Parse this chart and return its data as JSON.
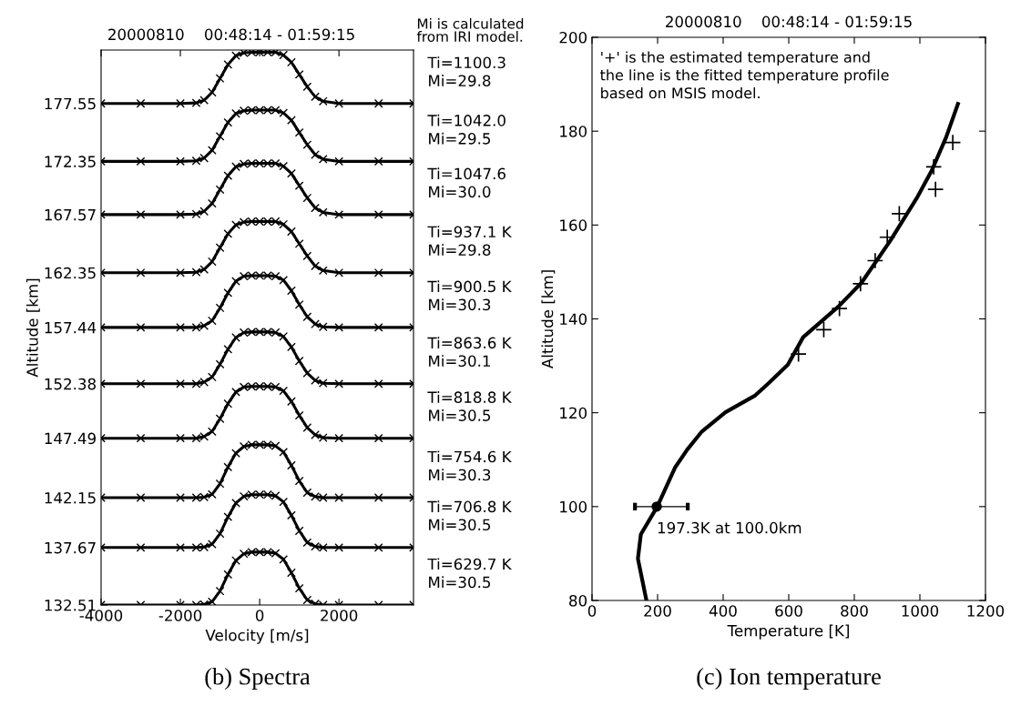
{
  "chart_data": [
    {
      "type": "line",
      "title": "20000810    00:48:14 - 01:59:15",
      "xlabel": "Velocity [m/s]",
      "ylabel": "Altitude [km]",
      "x": [
        -4000,
        -3000,
        -2000,
        -1600,
        -1400,
        -1200,
        -1000,
        -800,
        -600,
        -400,
        -200,
        0,
        200,
        400,
        600,
        800,
        1000,
        1200,
        1400,
        1600,
        2000,
        3000,
        3880
      ],
      "xlim": [
        -4000,
        3880
      ],
      "xticks": [
        -4000,
        -2000,
        0,
        2000
      ],
      "ylim": [
        132.51,
        182.35
      ],
      "yticks": [
        132.51,
        137.67,
        142.15,
        147.49,
        152.38,
        157.44,
        162.35,
        167.57,
        172.35,
        177.55
      ],
      "marker": "cross",
      "line_style": "solid",
      "grid": false,
      "legend": false,
      "series": [
        {
          "color": "#000000",
          "values": [
            132.51,
            132.51,
            132.51,
            132.51,
            132.56,
            132.81,
            133.76,
            135.26,
            136.51,
            137.11,
            137.26,
            137.26,
            137.26,
            137.16,
            136.61,
            135.41,
            134.01,
            132.96,
            132.61,
            132.51,
            132.51,
            132.51,
            132.51
          ]
        },
        {
          "color": "#000000",
          "values": [
            137.67,
            137.67,
            137.67,
            137.67,
            137.72,
            137.97,
            138.92,
            140.42,
            141.67,
            142.27,
            142.42,
            142.42,
            142.42,
            142.32,
            141.77,
            140.57,
            139.17,
            138.12,
            137.77,
            137.67,
            137.67,
            137.67,
            137.67
          ]
        },
        {
          "color": "#000000",
          "values": [
            142.15,
            142.15,
            142.15,
            142.15,
            142.2,
            142.45,
            143.4,
            144.9,
            146.15,
            146.75,
            146.9,
            146.9,
            146.9,
            146.8,
            146.25,
            145.05,
            143.65,
            142.6,
            142.25,
            142.15,
            142.15,
            142.15,
            142.15
          ]
        },
        {
          "color": "#000000",
          "values": [
            147.49,
            147.49,
            147.49,
            147.49,
            147.64,
            148.09,
            149.24,
            150.59,
            151.64,
            152.09,
            152.14,
            152.14,
            152.14,
            152.09,
            151.74,
            150.79,
            149.54,
            148.44,
            147.79,
            147.54,
            147.49,
            147.49,
            147.49
          ]
        },
        {
          "color": "#000000",
          "values": [
            152.38,
            152.38,
            152.38,
            152.38,
            152.53,
            152.98,
            154.13,
            155.48,
            156.53,
            156.98,
            157.03,
            157.03,
            157.03,
            156.98,
            156.63,
            155.68,
            154.43,
            153.33,
            152.68,
            152.43,
            152.38,
            152.38,
            152.38
          ]
        },
        {
          "color": "#000000",
          "values": [
            157.44,
            157.44,
            157.44,
            157.44,
            157.59,
            158.04,
            159.19,
            160.54,
            161.59,
            162.04,
            162.09,
            162.09,
            162.09,
            162.04,
            161.69,
            160.74,
            159.49,
            158.39,
            157.74,
            157.49,
            157.44,
            157.44,
            157.44
          ]
        },
        {
          "color": "#000000",
          "values": [
            162.35,
            162.35,
            162.35,
            162.4,
            162.65,
            163.35,
            164.6,
            165.85,
            166.65,
            166.9,
            166.95,
            166.95,
            166.95,
            166.95,
            166.7,
            166.05,
            164.95,
            163.85,
            162.95,
            162.55,
            162.35,
            162.35,
            162.35
          ]
        },
        {
          "color": "#000000",
          "values": [
            167.57,
            167.57,
            167.57,
            167.62,
            167.87,
            168.57,
            169.82,
            171.07,
            171.87,
            172.12,
            172.17,
            172.17,
            172.17,
            172.17,
            171.92,
            171.27,
            170.17,
            169.07,
            168.17,
            167.77,
            167.57,
            167.57,
            167.57
          ]
        },
        {
          "color": "#000000",
          "values": [
            172.35,
            172.35,
            172.35,
            172.4,
            172.65,
            173.35,
            174.6,
            175.85,
            176.65,
            176.9,
            176.95,
            176.95,
            176.95,
            176.95,
            176.7,
            176.05,
            174.95,
            173.85,
            172.95,
            172.55,
            172.35,
            172.35,
            172.35
          ]
        },
        {
          "color": "#000000",
          "values": [
            177.55,
            177.55,
            177.55,
            177.6,
            177.85,
            178.55,
            179.8,
            181.05,
            181.85,
            182.1,
            182.15,
            182.15,
            182.15,
            182.15,
            181.9,
            181.25,
            180.15,
            179.05,
            178.15,
            177.75,
            177.55,
            177.55,
            177.55
          ]
        }
      ],
      "annotations": [
        "Mi is calculated\nfrom IRI model.",
        "Ti=1100.3\nMi=29.8",
        "Ti=1042.0\nMi=29.5",
        "Ti=1047.6\nMi=30.0",
        "Ti=937.1 K\nMi=29.8",
        "Ti=900.5 K\nMi=30.3",
        "Ti=863.6 K\nMi=30.1",
        "Ti=818.8 K\nMi=30.5",
        "Ti=754.6 K\nMi=30.3",
        "Ti=706.8 K\nMi=30.5",
        "Ti=629.7 K\nMi=30.5",
        "(b) Spectra"
      ]
    },
    {
      "type": "line",
      "title": "20000810    00:48:14 - 01:59:15",
      "xlabel": "Temperature [K]",
      "ylabel": "Altitude [km]",
      "xlim": [
        0,
        1200
      ],
      "xticks": [
        0,
        200,
        400,
        600,
        800,
        1000,
        1200
      ],
      "ylim": [
        80,
        200
      ],
      "yticks": [
        80,
        100,
        120,
        140,
        160,
        180,
        200
      ],
      "grid": false,
      "legend": false,
      "line_style": "solid",
      "series": [
        {
          "type": "line",
          "color": "#000000",
          "marker": "none",
          "x": [
            166,
            140,
            149,
            199,
            253,
            290,
            335,
            407,
            498,
            534,
            597,
            644,
            751,
            822,
            911,
            991,
            1036,
            1080,
            1116
          ],
          "values": [
            80,
            88.9,
            94.1,
            100,
            108.3,
            112.1,
            116,
            120.1,
            123.7,
            126,
            130.2,
            136.1,
            142.6,
            147.7,
            156.8,
            165.8,
            171.6,
            178.7,
            185.8
          ]
        },
        {
          "type": "scatter",
          "color": "#000000",
          "marker": "plus",
          "x": [
            629.7,
            706.8,
            754.6,
            818.8,
            863.6,
            900.5,
            937.1,
            1047.6,
            1042.0,
            1100.3
          ],
          "values": [
            132.5,
            137.7,
            142.2,
            147.5,
            152.4,
            157.4,
            162.4,
            167.6,
            172.4,
            177.6
          ]
        },
        {
          "type": "scatter",
          "color": "#000000",
          "marker": "circle",
          "x": [
            197.3
          ],
          "values": [
            100
          ],
          "xerrors": [
            [
              131,
              292
            ]
          ]
        }
      ],
      "annotations": [
        "'+' is the estimated temperature and\nthe line is the fitted temperature profile\nbased on MSIS model.",
        {
          "text": "197.3K at 100.0km",
          "x": 197.3,
          "y": 100
        },
        "(c) Ion temperature"
      ]
    }
  ]
}
